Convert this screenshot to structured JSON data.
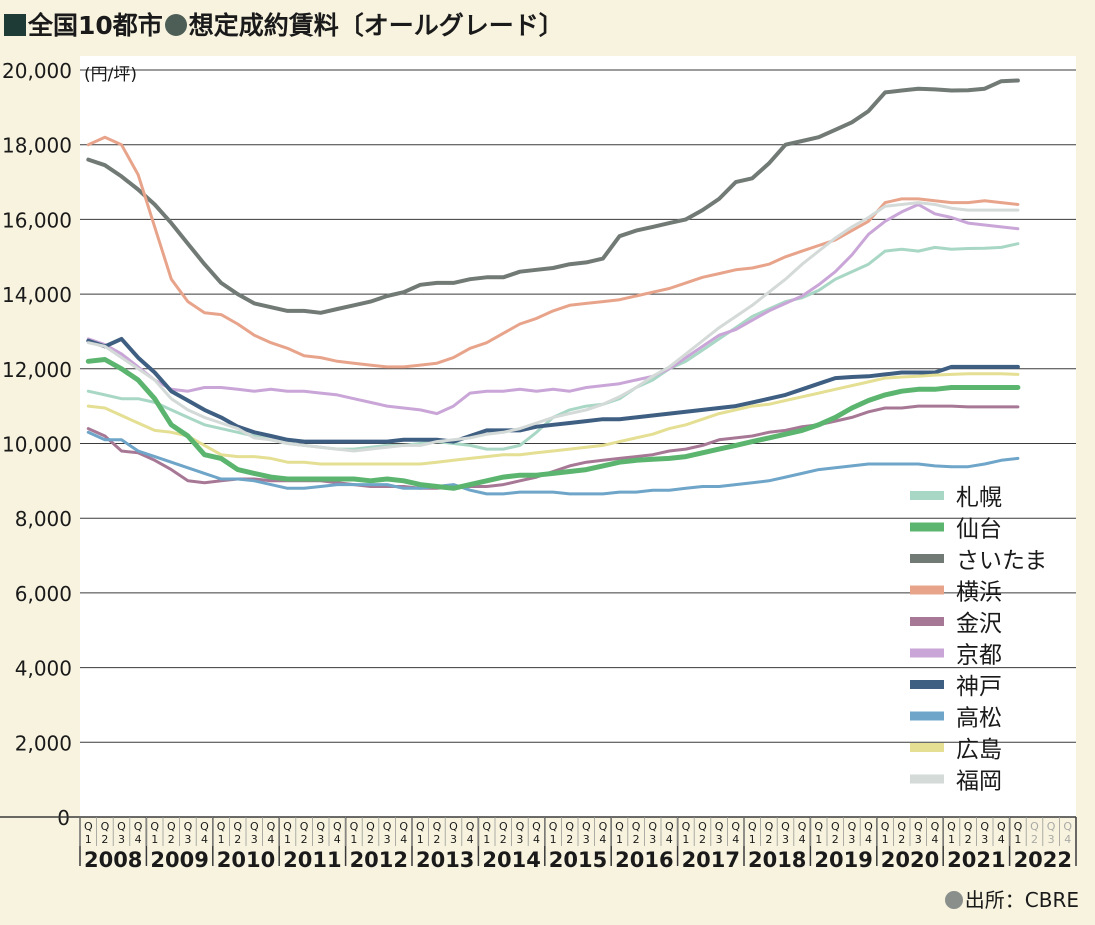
{
  "header": {
    "part1": "全国10都市",
    "part2": "想定成約賃料〔オールグレード〕"
  },
  "source": "出所：CBRE",
  "chart_data": {
    "type": "line",
    "unit_label": "(円/坪)",
    "ylim": [
      0,
      20000
    ],
    "yticks": [
      0,
      2000,
      4000,
      6000,
      8000,
      10000,
      12000,
      14000,
      16000,
      18000,
      20000
    ],
    "ytick_labels": [
      "0",
      "2,000",
      "4,000",
      "6,000",
      "8,000",
      "10,000",
      "12,000",
      "14,000",
      "16,000",
      "18,000",
      "20,000"
    ],
    "grid": "horizontal",
    "legend_position": "bottom-right",
    "years": [
      "2008",
      "2009",
      "2010",
      "2011",
      "2012",
      "2013",
      "2014",
      "2015",
      "2016",
      "2017",
      "2018",
      "2019",
      "2020",
      "2021",
      "2022"
    ],
    "quarter_labels": [
      "Q1",
      "Q2",
      "Q3",
      "Q4"
    ],
    "x": [
      "2008Q1",
      "2008Q2",
      "2008Q3",
      "2008Q4",
      "2009Q1",
      "2009Q2",
      "2009Q3",
      "2009Q4",
      "2010Q1",
      "2010Q2",
      "2010Q3",
      "2010Q4",
      "2011Q1",
      "2011Q2",
      "2011Q3",
      "2011Q4",
      "2012Q1",
      "2012Q2",
      "2012Q3",
      "2012Q4",
      "2013Q1",
      "2013Q2",
      "2013Q3",
      "2013Q4",
      "2014Q1",
      "2014Q2",
      "2014Q3",
      "2014Q4",
      "2015Q1",
      "2015Q2",
      "2015Q3",
      "2015Q4",
      "2016Q1",
      "2016Q2",
      "2016Q3",
      "2016Q4",
      "2017Q1",
      "2017Q2",
      "2017Q3",
      "2017Q4",
      "2018Q1",
      "2018Q2",
      "2018Q3",
      "2018Q4",
      "2019Q1",
      "2019Q2",
      "2019Q3",
      "2019Q4",
      "2020Q1",
      "2020Q2",
      "2020Q3",
      "2020Q4",
      "2021Q1",
      "2021Q2",
      "2021Q3",
      "2021Q4",
      "2022Q1"
    ],
    "series": [
      {
        "name": "札幌",
        "color": "#a9d7c5",
        "width": 3,
        "values": [
          11400,
          11300,
          11200,
          11200,
          11100,
          10900,
          10700,
          10500,
          10400,
          10300,
          10200,
          10100,
          10000,
          9950,
          9900,
          9850,
          9850,
          9900,
          9950,
          9950,
          10000,
          10050,
          10000,
          9950,
          9850,
          9850,
          9950,
          10300,
          10700,
          10900,
          11000,
          11050,
          11200,
          11500,
          11700,
          12000,
          12200,
          12500,
          12800,
          13100,
          13400,
          13600,
          13800,
          13900,
          14100,
          14400,
          14600,
          14800,
          15150,
          15200,
          15150,
          15250,
          15200,
          15220,
          15230,
          15250,
          15350
        ]
      },
      {
        "name": "仙台",
        "color": "#5bb56f",
        "width": 5,
        "values": [
          12200,
          12250,
          12000,
          11700,
          11200,
          10500,
          10200,
          9700,
          9600,
          9300,
          9200,
          9100,
          9050,
          9050,
          9050,
          9050,
          9050,
          9000,
          9050,
          9000,
          8900,
          8850,
          8800,
          8900,
          9000,
          9100,
          9150,
          9150,
          9200,
          9250,
          9300,
          9400,
          9500,
          9550,
          9580,
          9600,
          9650,
          9750,
          9850,
          9950,
          10050,
          10150,
          10250,
          10350,
          10500,
          10700,
          10950,
          11150,
          11300,
          11400,
          11450,
          11450,
          11500,
          11500,
          11500,
          11500,
          11500
        ]
      },
      {
        "name": "さいたま",
        "color": "#727a76",
        "width": 4,
        "values": [
          17600,
          17450,
          17150,
          16800,
          16400,
          15900,
          15350,
          14800,
          14300,
          14000,
          13750,
          13650,
          13550,
          13550,
          13500,
          13600,
          13700,
          13800,
          13950,
          14050,
          14250,
          14300,
          14300,
          14400,
          14450,
          14450,
          14600,
          14650,
          14700,
          14800,
          14850,
          14950,
          15550,
          15700,
          15800,
          15900,
          16000,
          16250,
          16550,
          17000,
          17100,
          17500,
          18000,
          18100,
          18200,
          18400,
          18600,
          18900,
          19400,
          19450,
          19500,
          19480,
          19450,
          19460,
          19500,
          19700,
          19720
        ]
      },
      {
        "name": "横浜",
        "color": "#e8a48b",
        "width": 3,
        "values": [
          18000,
          18200,
          18000,
          17200,
          15800,
          14400,
          13800,
          13500,
          13450,
          13200,
          12900,
          12700,
          12550,
          12350,
          12300,
          12200,
          12150,
          12100,
          12050,
          12050,
          12100,
          12150,
          12300,
          12550,
          12700,
          12950,
          13200,
          13350,
          13550,
          13700,
          13750,
          13800,
          13850,
          13950,
          14050,
          14150,
          14300,
          14450,
          14550,
          14650,
          14700,
          14800,
          15000,
          15150,
          15300,
          15450,
          15700,
          15950,
          16450,
          16550,
          16550,
          16500,
          16450,
          16450,
          16500,
          16450,
          16400
        ]
      },
      {
        "name": "金沢",
        "color": "#a77895",
        "width": 3,
        "values": [
          10400,
          10200,
          9800,
          9750,
          9550,
          9300,
          9000,
          8950,
          9000,
          9050,
          9050,
          9000,
          9000,
          9000,
          9000,
          8950,
          8900,
          8850,
          8850,
          8850,
          8800,
          8800,
          8850,
          8850,
          8850,
          8900,
          9000,
          9100,
          9250,
          9400,
          9500,
          9550,
          9600,
          9650,
          9700,
          9800,
          9850,
          9950,
          10100,
          10150,
          10200,
          10300,
          10350,
          10450,
          10500,
          10600,
          10700,
          10850,
          10950,
          10950,
          11000,
          11000,
          11000,
          10980,
          10980,
          10980,
          10980
        ]
      },
      {
        "name": "京都",
        "color": "#c9a6d7",
        "width": 3,
        "values": [
          12800,
          12650,
          12400,
          12050,
          11700,
          11450,
          11400,
          11500,
          11500,
          11450,
          11400,
          11450,
          11400,
          11400,
          11350,
          11300,
          11200,
          11100,
          11000,
          10950,
          10900,
          10800,
          11000,
          11350,
          11400,
          11400,
          11450,
          11400,
          11450,
          11400,
          11500,
          11550,
          11600,
          11700,
          11800,
          12000,
          12300,
          12600,
          12900,
          13050,
          13300,
          13550,
          13750,
          13950,
          14250,
          14600,
          15050,
          15600,
          15950,
          16200,
          16400,
          16150,
          16050,
          15900,
          15850,
          15800,
          15750
        ]
      },
      {
        "name": "神戸",
        "color": "#3f5f82",
        "width": 4,
        "values": [
          12750,
          12600,
          12800,
          12300,
          11900,
          11400,
          11150,
          10900,
          10700,
          10450,
          10300,
          10200,
          10100,
          10050,
          10050,
          10050,
          10050,
          10050,
          10050,
          10100,
          10100,
          10100,
          10050,
          10200,
          10350,
          10350,
          10350,
          10450,
          10500,
          10550,
          10600,
          10650,
          10650,
          10700,
          10750,
          10800,
          10850,
          10900,
          10950,
          11000,
          11100,
          11200,
          11300,
          11450,
          11600,
          11750,
          11780,
          11800,
          11850,
          11900,
          11900,
          11900,
          12050,
          12050,
          12050,
          12050,
          12050
        ]
      },
      {
        "name": "高松",
        "color": "#6ea5c8",
        "width": 3,
        "values": [
          10300,
          10100,
          10100,
          9800,
          9650,
          9500,
          9350,
          9200,
          9050,
          9050,
          9000,
          8900,
          8800,
          8800,
          8850,
          8900,
          8900,
          8900,
          8900,
          8800,
          8800,
          8850,
          8900,
          8750,
          8650,
          8650,
          8700,
          8700,
          8700,
          8650,
          8650,
          8650,
          8700,
          8700,
          8750,
          8750,
          8800,
          8850,
          8850,
          8900,
          8950,
          9000,
          9100,
          9200,
          9300,
          9350,
          9400,
          9450,
          9450,
          9450,
          9450,
          9400,
          9380,
          9380,
          9450,
          9550,
          9600
        ]
      },
      {
        "name": "広島",
        "color": "#e4df93",
        "width": 3,
        "values": [
          11000,
          10950,
          10750,
          10550,
          10350,
          10300,
          10200,
          9950,
          9700,
          9650,
          9650,
          9600,
          9500,
          9500,
          9450,
          9450,
          9450,
          9450,
          9450,
          9450,
          9450,
          9500,
          9550,
          9600,
          9650,
          9700,
          9700,
          9750,
          9800,
          9850,
          9900,
          9950,
          10050,
          10150,
          10250,
          10400,
          10500,
          10650,
          10800,
          10900,
          11000,
          11050,
          11150,
          11250,
          11350,
          11450,
          11550,
          11650,
          11750,
          11780,
          11800,
          11830,
          11850,
          11870,
          11870,
          11870,
          11850
        ]
      },
      {
        "name": "福岡",
        "color": "#d4dad8",
        "width": 3,
        "values": [
          12700,
          12600,
          12300,
          12000,
          11700,
          11200,
          10900,
          10700,
          10550,
          10400,
          10150,
          10100,
          10000,
          9950,
          9900,
          9850,
          9800,
          9850,
          9900,
          9950,
          9950,
          10050,
          10100,
          10150,
          10250,
          10300,
          10400,
          10550,
          10700,
          10800,
          10900,
          11050,
          11250,
          11500,
          11800,
          12050,
          12400,
          12750,
          13100,
          13400,
          13700,
          14050,
          14400,
          14800,
          15150,
          15500,
          15800,
          16050,
          16350,
          16400,
          16450,
          16400,
          16300,
          16250,
          16250,
          16250,
          16250
        ]
      }
    ]
  }
}
